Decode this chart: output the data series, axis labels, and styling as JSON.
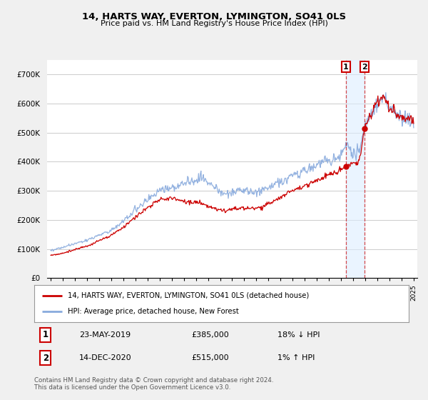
{
  "title": "14, HARTS WAY, EVERTON, LYMINGTON, SO41 0LS",
  "subtitle": "Price paid vs. HM Land Registry's House Price Index (HPI)",
  "legend_label_red": "14, HARTS WAY, EVERTON, LYMINGTON, SO41 0LS (detached house)",
  "legend_label_blue": "HPI: Average price, detached house, New Forest",
  "transaction1_date": "23-MAY-2019",
  "transaction1_price": "£385,000",
  "transaction1_hpi": "18% ↓ HPI",
  "transaction2_date": "14-DEC-2020",
  "transaction2_price": "£515,000",
  "transaction2_hpi": "1% ↑ HPI",
  "footer": "Contains HM Land Registry data © Crown copyright and database right 2024.\nThis data is licensed under the Open Government Licence v3.0.",
  "red_color": "#cc0000",
  "blue_color": "#88aadd",
  "background_color": "#f0f0f0",
  "plot_bg_color": "#ffffff",
  "grid_color": "#cccccc",
  "ylim": [
    0,
    750000
  ],
  "yticks": [
    0,
    100000,
    200000,
    300000,
    400000,
    500000,
    600000,
    700000
  ],
  "ytick_labels": [
    "£0",
    "£100K",
    "£200K",
    "£300K",
    "£400K",
    "£500K",
    "£600K",
    "£700K"
  ],
  "xstart_year": 1995,
  "xend_year": 2025,
  "transaction1_year": 2019.39,
  "transaction2_year": 2020.95,
  "transaction1_price_val": 385000,
  "transaction2_price_val": 515000
}
